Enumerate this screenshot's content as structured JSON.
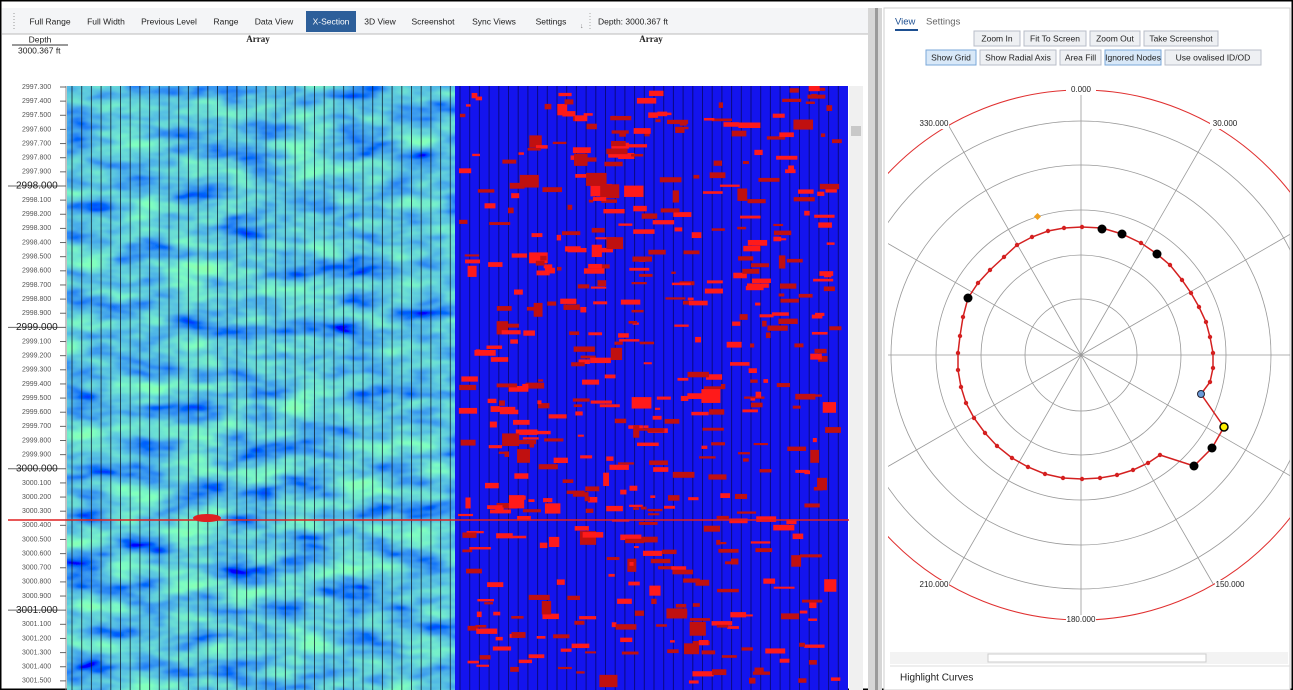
{
  "toolbar": {
    "buttons": [
      "Full Range",
      "Full Width",
      "Previous Level",
      "Range",
      "Data View",
      "X-Section",
      "3D View",
      "Screenshot",
      "Sync Views",
      "Settings"
    ],
    "depth_readout": "Depth: 3000.367 ft"
  },
  "tracks": {
    "depth_header": "Depth",
    "depth_value": "3000.367 ft",
    "titles": [
      "Array",
      "Array"
    ],
    "depth_ticks": [
      "2997.300",
      "2997.400",
      "2997.500",
      "2997.600",
      "2997.700",
      "2997.800",
      "2997.900",
      "2998.000",
      "2998.100",
      "2998.200",
      "2998.300",
      "2998.400",
      "2998.500",
      "2998.600",
      "2998.700",
      "2998.800",
      "2998.900",
      "2999.000",
      "2999.100",
      "2999.200",
      "2999.300",
      "2999.400",
      "2999.500",
      "2999.600",
      "2999.700",
      "2999.800",
      "2999.900",
      "3000.000",
      "3000.100",
      "3000.200",
      "3000.300",
      "3000.400",
      "3000.500",
      "3000.600",
      "3000.700",
      "3000.800",
      "3000.900",
      "3001.000",
      "3001.100",
      "3001.200",
      "3001.300",
      "3001.400",
      "3001.500"
    ]
  },
  "polar_panel": {
    "tabs": [
      "View",
      "Settings"
    ],
    "buttons_row1": [
      "Zoom In",
      "Fit To Screen",
      "Zoom Out",
      "Take Screenshot"
    ],
    "buttons_row2": [
      "Show Grid",
      "Show Radial Axis",
      "Area Fill",
      "Ignored Nodes",
      "Use ovalised ID/OD"
    ],
    "angle_labels": [
      "0.000",
      "30.000",
      "150.000",
      "180.000",
      "210.000",
      "330.000"
    ],
    "footer": "Highlight Curves"
  }
}
